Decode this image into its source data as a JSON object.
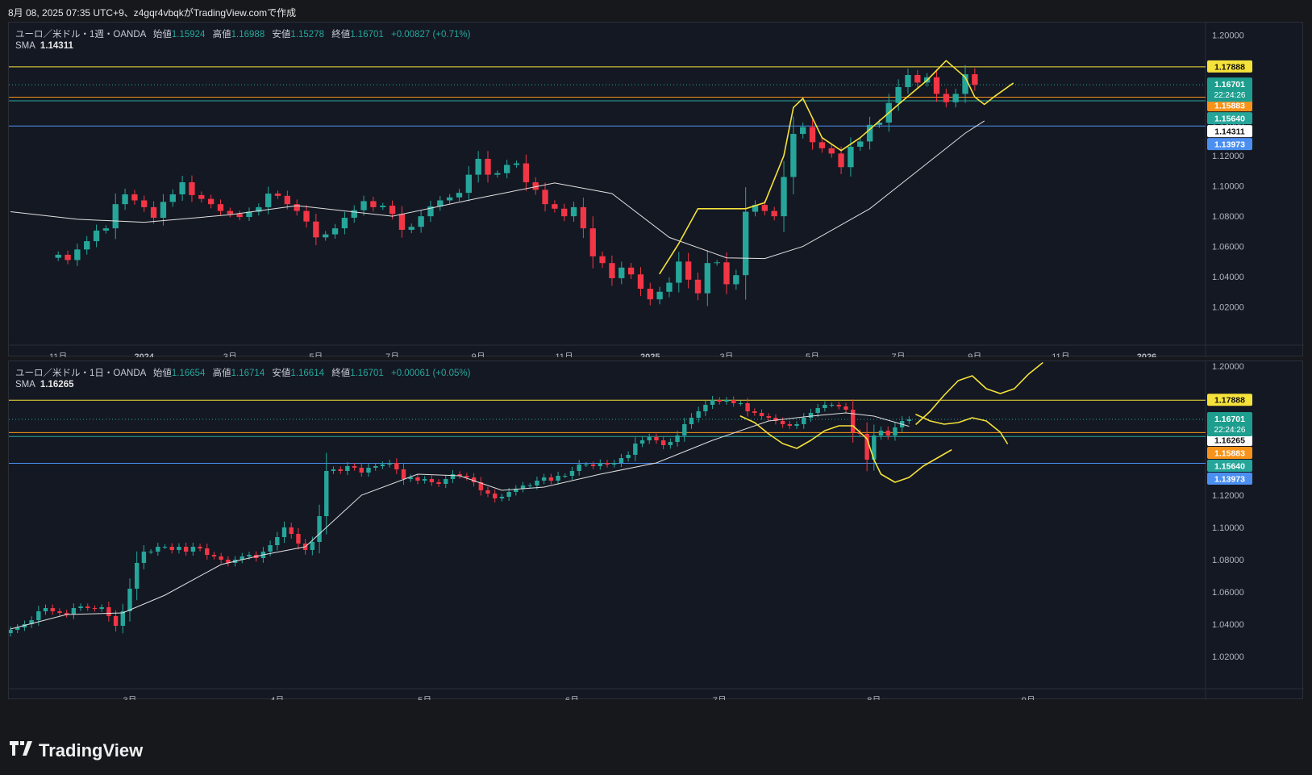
{
  "caption": "8月 08, 2025 07:35 UTC+9、z4gqr4vbqkがTradingView.comで作成",
  "brand": "TradingView",
  "colors": {
    "up": "#26a69a",
    "down": "#f23645",
    "sma": "#e0e0e0",
    "drawing": "#f5e23a"
  },
  "chart_data": [
    {
      "type": "candlestick",
      "symbol": "ユーロ／米ドル・1週・OANDA",
      "ohlc": {
        "open_label": "始値",
        "open": "1.15924",
        "high_label": "高値",
        "high": "1.16988",
        "low_label": "安値",
        "low": "1.15278",
        "close_label": "終値",
        "close": "1.16701",
        "change": "+0.00827 (+0.71%)"
      },
      "sma_label": "SMA",
      "sma_value": "1.14311",
      "y_ticks": [
        "1.20000",
        "1.18000",
        "1.16000",
        "1.14000",
        "1.12000",
        "1.10000",
        "1.08000",
        "1.06000",
        "1.04000",
        "1.02000"
      ],
      "x_ticks": [
        "11月",
        "2024",
        "3月",
        "5月",
        "7月",
        "9月",
        "11月",
        "2025",
        "3月",
        "5月",
        "7月",
        "9月",
        "11月",
        "2026"
      ],
      "ylim": [
        1.0,
        1.205
      ],
      "x_tick_index": [
        0,
        9,
        18,
        27,
        35,
        44,
        53,
        62,
        70,
        79,
        88,
        96,
        105,
        114
      ],
      "x_index_range": [
        -5,
        120
      ],
      "horizontal_lines": [
        {
          "value": 1.17888,
          "color": "#f5e23a",
          "label": "1.17888"
        },
        {
          "value": 1.15883,
          "color": "#f7931a",
          "label": "1.15883"
        },
        {
          "value": 1.1564,
          "color": "#26a69a",
          "label": "1.15640"
        },
        {
          "value": 1.13973,
          "color": "#4b8ff0",
          "label": "1.13973"
        }
      ],
      "price_badge": {
        "value": 1.16701,
        "label": "1.16701",
        "countdown": "22:24:26"
      },
      "sma_badge": {
        "value": 1.14311,
        "label": "1.14311"
      },
      "closes": [
        1.0545,
        1.051,
        1.058,
        1.0635,
        1.0705,
        1.072,
        1.088,
        1.0945,
        1.0905,
        1.086,
        1.079,
        1.0895,
        1.0945,
        1.1025,
        1.094,
        1.0915,
        1.088,
        1.0835,
        1.0815,
        1.0795,
        1.083,
        1.086,
        1.095,
        1.0935,
        1.088,
        1.0835,
        1.0765,
        1.066,
        1.068,
        1.072,
        1.079,
        1.084,
        1.09,
        1.086,
        1.087,
        1.0815,
        1.071,
        1.073,
        1.08,
        1.0865,
        1.0905,
        1.0925,
        1.0955,
        1.1075,
        1.118,
        1.1075,
        1.1085,
        1.114,
        1.115,
        1.1025,
        1.0975,
        1.088,
        1.085,
        1.08,
        1.086,
        1.072,
        1.0535,
        1.049,
        1.039,
        1.046,
        1.0415,
        1.032,
        1.025,
        1.03,
        1.036,
        1.05,
        1.038,
        1.029,
        1.049,
        1.0495,
        1.035,
        1.041,
        1.083,
        1.0875,
        1.0835,
        1.08,
        1.106,
        1.1345,
        1.139,
        1.129,
        1.125,
        1.1215,
        1.1125,
        1.126,
        1.1295,
        1.1405,
        1.142,
        1.155,
        1.1655,
        1.1735,
        1.1685,
        1.172,
        1.161,
        1.1555,
        1.161,
        1.174,
        1.167
      ],
      "sma_curve": [
        [
          -5,
          1.083
        ],
        [
          2,
          1.078
        ],
        [
          9,
          1.076
        ],
        [
          18,
          1.081
        ],
        [
          25,
          1.087
        ],
        [
          35,
          1.08
        ],
        [
          44,
          1.092
        ],
        [
          52,
          1.102
        ],
        [
          58,
          1.095
        ],
        [
          64,
          1.066
        ],
        [
          70,
          1.0525
        ],
        [
          74,
          1.052
        ],
        [
          78,
          1.06
        ],
        [
          85,
          1.085
        ],
        [
          90,
          1.11
        ],
        [
          95,
          1.135
        ],
        [
          97,
          1.1431
        ]
      ],
      "drawing": [
        [
          63,
          1.042
        ],
        [
          65,
          1.062
        ],
        [
          67,
          1.085
        ],
        [
          69,
          1.085
        ],
        [
          72,
          1.085
        ],
        [
          74,
          1.089
        ],
        [
          76,
          1.12
        ],
        [
          77,
          1.152
        ],
        [
          78,
          1.158
        ],
        [
          80,
          1.132
        ],
        [
          82,
          1.1235
        ],
        [
          84,
          1.132
        ],
        [
          88,
          1.154
        ],
        [
          91,
          1.17
        ],
        [
          93,
          1.183
        ],
        [
          95,
          1.172
        ],
        [
          96,
          1.159
        ],
        [
          97,
          1.154
        ],
        [
          98,
          1.159
        ],
        [
          100,
          1.168
        ]
      ]
    },
    {
      "type": "candlestick",
      "symbol": "ユーロ／米ドル・1日・OANDA",
      "ohlc": {
        "open_label": "始値",
        "open": "1.16654",
        "high_label": "高値",
        "high": "1.16714",
        "low_label": "安値",
        "low": "1.16614",
        "close_label": "終値",
        "close": "1.16701",
        "change": "+0.00061 (+0.05%)"
      },
      "sma_label": "SMA",
      "sma_value": "1.16265",
      "y_ticks": [
        "1.20000",
        "1.18000",
        "1.16000",
        "1.14000",
        "1.12000",
        "1.10000",
        "1.08000",
        "1.06000",
        "1.04000",
        "1.02000"
      ],
      "x_ticks": [
        "3月",
        "4月",
        "5月",
        "6月",
        "7月",
        "8月",
        "9月"
      ],
      "ylim": [
        1.005,
        1.2
      ],
      "x_tick_index": [
        17,
        38,
        59,
        80,
        101,
        123,
        145
      ],
      "x_index_range": [
        0,
        170
      ],
      "horizontal_lines": [
        {
          "value": 1.17888,
          "color": "#f5e23a",
          "label": "1.17888"
        },
        {
          "value": 1.15883,
          "color": "#f7931a",
          "label": "1.15883"
        },
        {
          "value": 1.1564,
          "color": "#26a69a",
          "label": "1.15640"
        },
        {
          "value": 1.13973,
          "color": "#4b8ff0",
          "label": "1.13973"
        }
      ],
      "price_badge": {
        "value": 1.16701,
        "label": "1.16701",
        "countdown": "22:24:26"
      },
      "sma_badge": {
        "value": 1.16265,
        "label": "1.16265"
      },
      "closes": [
        1.0365,
        1.038,
        1.04,
        1.0425,
        1.048,
        1.05,
        1.048,
        1.047,
        1.046,
        1.05,
        1.051,
        1.05,
        1.0495,
        1.0505,
        1.045,
        1.039,
        1.048,
        1.062,
        1.078,
        1.085,
        1.085,
        1.088,
        1.088,
        1.086,
        1.088,
        1.085,
        1.088,
        1.087,
        1.083,
        1.082,
        1.08,
        1.078,
        1.08,
        1.082,
        1.083,
        1.081,
        1.085,
        1.089,
        1.094,
        1.1,
        1.096,
        1.09,
        1.086,
        1.091,
        1.107,
        1.135,
        1.136,
        1.135,
        1.138,
        1.137,
        1.134,
        1.137,
        1.138,
        1.139,
        1.14,
        1.136,
        1.13,
        1.131,
        1.129,
        1.13,
        1.128,
        1.127,
        1.13,
        1.133,
        1.132,
        1.131,
        1.128,
        1.123,
        1.121,
        1.118,
        1.119,
        1.122,
        1.124,
        1.126,
        1.126,
        1.129,
        1.131,
        1.129,
        1.132,
        1.132,
        1.135,
        1.139,
        1.139,
        1.138,
        1.14,
        1.139,
        1.14,
        1.143,
        1.145,
        1.152,
        1.154,
        1.156,
        1.154,
        1.151,
        1.153,
        1.157,
        1.164,
        1.168,
        1.172,
        1.176,
        1.179,
        1.178,
        1.179,
        1.177,
        1.177,
        1.172,
        1.171,
        1.169,
        1.168,
        1.166,
        1.164,
        1.163,
        1.164,
        1.168,
        1.171,
        1.174,
        1.176,
        1.176,
        1.175,
        1.173,
        1.159,
        1.158,
        1.142,
        1.157,
        1.16,
        1.157,
        1.162,
        1.166,
        1.167
      ],
      "sma_curve": [
        [
          0,
          1.037
        ],
        [
          8,
          1.046
        ],
        [
          16,
          1.047
        ],
        [
          22,
          1.058
        ],
        [
          30,
          1.077
        ],
        [
          36,
          1.083
        ],
        [
          42,
          1.088
        ],
        [
          50,
          1.12
        ],
        [
          58,
          1.133
        ],
        [
          64,
          1.132
        ],
        [
          70,
          1.123
        ],
        [
          76,
          1.125
        ],
        [
          84,
          1.133
        ],
        [
          92,
          1.14
        ],
        [
          100,
          1.154
        ],
        [
          108,
          1.166
        ],
        [
          114,
          1.169
        ],
        [
          119,
          1.171
        ],
        [
          123,
          1.169
        ],
        [
          128,
          1.1627
        ]
      ],
      "drawings": [
        [
          [
            104,
            1.169
          ],
          [
            106,
            1.165
          ],
          [
            108,
            1.158
          ],
          [
            110,
            1.152
          ],
          [
            112,
            1.149
          ],
          [
            114,
            1.154
          ],
          [
            116,
            1.16
          ],
          [
            118,
            1.163
          ],
          [
            120,
            1.163
          ],
          [
            122,
            1.155
          ],
          [
            123,
            1.142
          ],
          [
            124,
            1.133
          ],
          [
            126,
            1.128
          ],
          [
            128,
            1.131
          ],
          [
            130,
            1.138
          ],
          [
            132,
            1.143
          ],
          [
            134,
            1.148
          ]
        ],
        [
          [
            129,
            1.164
          ],
          [
            131,
            1.172
          ],
          [
            133,
            1.182
          ],
          [
            135,
            1.191
          ],
          [
            137,
            1.194
          ],
          [
            139,
            1.186
          ],
          [
            141,
            1.183
          ],
          [
            143,
            1.186
          ],
          [
            145,
            1.195
          ],
          [
            147,
            1.202
          ]
        ],
        [
          [
            129,
            1.17
          ],
          [
            131,
            1.166
          ],
          [
            133,
            1.164
          ],
          [
            135,
            1.165
          ],
          [
            137,
            1.168
          ],
          [
            139,
            1.166
          ],
          [
            141,
            1.159
          ],
          [
            142,
            1.152
          ]
        ]
      ]
    }
  ]
}
